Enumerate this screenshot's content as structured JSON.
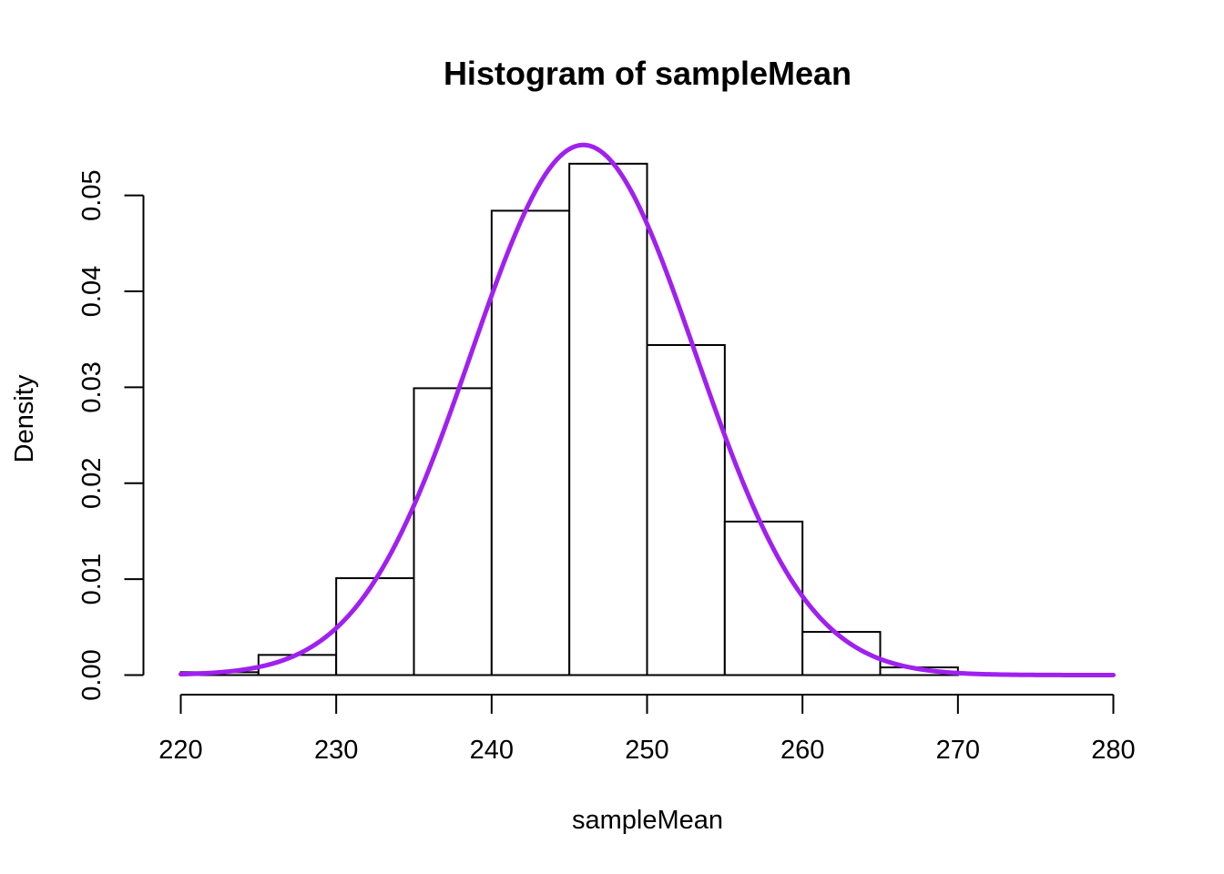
{
  "chart_data": {
    "type": "bar",
    "title": "Histogram of sampleMean",
    "xlabel": "sampleMean",
    "ylabel": "Density",
    "xlim": [
      220,
      280
    ],
    "ylim": [
      0,
      0.055
    ],
    "xticks": [
      "220",
      "230",
      "240",
      "250",
      "260",
      "270",
      "280"
    ],
    "yticks": [
      "0.00",
      "0.01",
      "0.02",
      "0.03",
      "0.04",
      "0.05"
    ],
    "bins": [
      {
        "from": 220,
        "to": 225,
        "density": 0.0003
      },
      {
        "from": 225,
        "to": 230,
        "density": 0.0021
      },
      {
        "from": 230,
        "to": 235,
        "density": 0.0101
      },
      {
        "from": 235,
        "to": 240,
        "density": 0.0299
      },
      {
        "from": 240,
        "to": 245,
        "density": 0.0484
      },
      {
        "from": 245,
        "to": 250,
        "density": 0.0533
      },
      {
        "from": 250,
        "to": 255,
        "density": 0.0344
      },
      {
        "from": 255,
        "to": 260,
        "density": 0.016
      },
      {
        "from": 260,
        "to": 265,
        "density": 0.0045
      },
      {
        "from": 265,
        "to": 270,
        "density": 0.0008
      }
    ],
    "curve": {
      "type": "normal-density",
      "mean": 245.9,
      "sd": 7.22,
      "x_range": [
        220,
        280
      ],
      "color": "#a020f0"
    },
    "bar_fill": "#ffffff",
    "bar_stroke": "#000000",
    "grid": false,
    "legend": "none"
  }
}
